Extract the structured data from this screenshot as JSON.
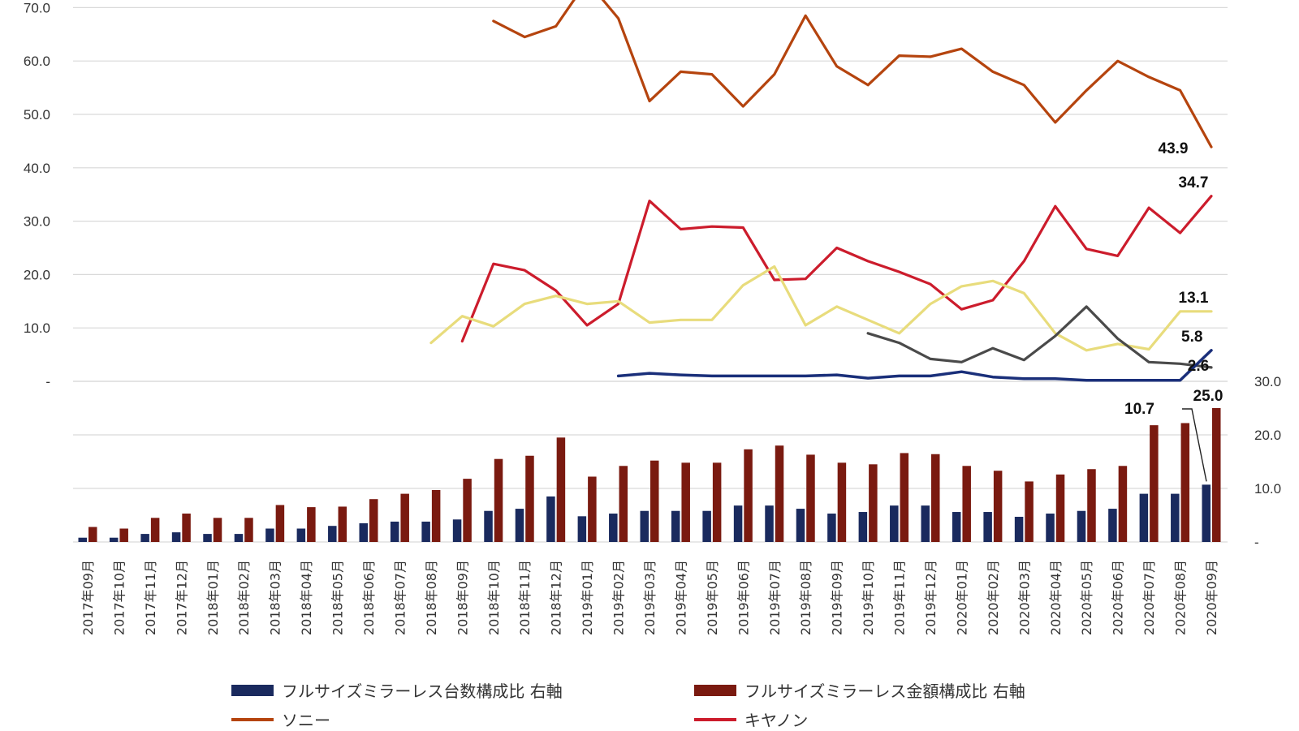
{
  "chart_data": {
    "type": "line+bar",
    "categories": [
      "2017年09月",
      "2017年10月",
      "2017年11月",
      "2017年12月",
      "2018年01月",
      "2018年02月",
      "2018年03月",
      "2018年04月",
      "2018年05月",
      "2018年06月",
      "2018年07月",
      "2018年08月",
      "2018年09月",
      "2018年10月",
      "2018年11月",
      "2018年12月",
      "2019年01月",
      "2019年02月",
      "2019年03月",
      "2019年04月",
      "2019年05月",
      "2019年06月",
      "2019年07月",
      "2019年08月",
      "2019年09月",
      "2019年10月",
      "2019年11月",
      "2019年12月",
      "2020年01月",
      "2020年02月",
      "2020年03月",
      "2020年04月",
      "2020年05月",
      "2020年06月",
      "2020年07月",
      "2020年08月",
      "2020年09月"
    ],
    "left_axis": {
      "ylim": [
        0,
        70
      ],
      "ticks": [
        "-",
        "10.0",
        "20.0",
        "30.0",
        "40.0",
        "50.0",
        "60.0",
        "70.0"
      ]
    },
    "right_axis": {
      "ylim": [
        0,
        30
      ],
      "ticks": [
        "-",
        "10.0",
        "20.0",
        "30.0"
      ]
    },
    "grid": true,
    "legend_position": "bottom",
    "bar_series": [
      {
        "name": "フルサイズミラーレス台数構成比 右軸",
        "color": "#1a2a5e",
        "values": [
          0.8,
          0.8,
          1.5,
          1.8,
          1.5,
          1.5,
          2.5,
          2.5,
          3.0,
          3.5,
          3.8,
          3.8,
          4.2,
          5.8,
          6.2,
          8.5,
          4.8,
          5.3,
          5.8,
          5.8,
          5.8,
          6.8,
          6.8,
          6.2,
          5.3,
          5.6,
          6.8,
          6.8,
          5.6,
          5.6,
          4.7,
          5.3,
          5.8,
          6.2,
          9.0,
          9.0,
          10.7
        ]
      },
      {
        "name": "フルサイズミラーレス金額構成比 右軸",
        "color": "#7a1a10",
        "values": [
          2.8,
          2.5,
          4.5,
          5.3,
          4.5,
          4.5,
          6.9,
          6.5,
          6.6,
          8.0,
          9.0,
          9.7,
          11.8,
          15.5,
          16.1,
          19.5,
          12.2,
          14.2,
          15.2,
          14.8,
          14.8,
          17.3,
          18.0,
          16.3,
          14.8,
          14.5,
          16.6,
          16.4,
          14.2,
          13.3,
          11.3,
          12.6,
          13.6,
          14.2,
          21.8,
          22.2,
          25.0
        ]
      }
    ],
    "line_series": [
      {
        "name": "ソニー",
        "color": "#b5440e",
        "values": [
          null,
          null,
          null,
          null,
          null,
          null,
          null,
          null,
          null,
          null,
          null,
          null,
          null,
          67.5,
          64.5,
          66.5,
          75.0,
          68.0,
          52.5,
          58.0,
          57.5,
          51.5,
          57.5,
          68.5,
          59.0,
          55.5,
          61.0,
          60.8,
          62.3,
          58.0,
          55.5,
          48.5,
          54.5,
          60.0,
          57.0,
          54.5,
          43.9
        ]
      },
      {
        "name": "キヤノン",
        "color": "#cc1c2c",
        "values": [
          null,
          null,
          null,
          null,
          null,
          null,
          null,
          null,
          null,
          null,
          null,
          null,
          7.5,
          22.0,
          20.8,
          17.0,
          10.5,
          14.5,
          33.8,
          28.5,
          29.0,
          28.8,
          19.0,
          19.2,
          25.0,
          22.5,
          20.5,
          18.2,
          13.5,
          15.2,
          22.5,
          32.8,
          24.8,
          23.5,
          32.5,
          27.8,
          34.7
        ]
      },
      {
        "name": "",
        "color": "#e8dc7c",
        "values": [
          null,
          null,
          null,
          null,
          null,
          null,
          null,
          null,
          null,
          null,
          null,
          7.2,
          12.2,
          10.3,
          14.5,
          16.0,
          14.5,
          15.0,
          11.0,
          11.5,
          11.5,
          18.0,
          21.5,
          10.5,
          14.0,
          11.5,
          9.0,
          14.5,
          17.8,
          18.8,
          16.5,
          9.0,
          5.8,
          7.0,
          6.0,
          13.1,
          13.1
        ]
      },
      {
        "name": "",
        "color": "#4a4a4a",
        "values": [
          null,
          null,
          null,
          null,
          null,
          null,
          null,
          null,
          null,
          null,
          null,
          null,
          null,
          null,
          null,
          null,
          null,
          null,
          null,
          null,
          null,
          null,
          null,
          null,
          null,
          9.0,
          7.2,
          4.2,
          3.6,
          6.2,
          4.0,
          8.5,
          14.0,
          8.0,
          3.6,
          3.3,
          2.6
        ]
      },
      {
        "name": "",
        "color": "#1a2f7a",
        "values": [
          null,
          null,
          null,
          null,
          null,
          null,
          null,
          null,
          null,
          null,
          null,
          null,
          null,
          null,
          null,
          null,
          null,
          1.0,
          1.5,
          1.2,
          1.0,
          1.0,
          1.0,
          1.0,
          1.2,
          0.6,
          1.0,
          1.0,
          1.8,
          0.8,
          0.5,
          0.5,
          0.2,
          0.2,
          0.2,
          0.2,
          5.8
        ]
      }
    ],
    "data_labels": [
      {
        "text": "43.9"
      },
      {
        "text": "34.7"
      },
      {
        "text": "13.1"
      },
      {
        "text": "5.8"
      },
      {
        "text": "2.6"
      },
      {
        "text": "10.7"
      },
      {
        "text": "25.0"
      }
    ]
  }
}
